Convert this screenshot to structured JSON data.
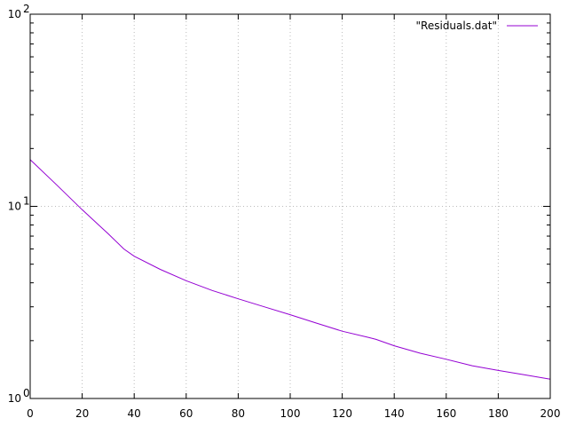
{
  "chart_data": {
    "type": "line",
    "title": "",
    "xlabel": "",
    "ylabel": "",
    "xlim": [
      0,
      200
    ],
    "ylim": [
      1,
      100
    ],
    "yscale": "log",
    "grid": true,
    "legend": "top-right",
    "x_ticks": [
      "0",
      "20",
      "40",
      "60",
      "80",
      "100",
      "120",
      "140",
      "160",
      "180",
      "200"
    ],
    "y_ticks": [
      {
        "base": "10",
        "exp": "0"
      },
      {
        "base": "10",
        "exp": "1"
      },
      {
        "base": "10",
        "exp": "2"
      }
    ],
    "series": [
      {
        "name": "\"Residuals.dat\"",
        "color": "#9400d3",
        "x": [
          0,
          10,
          20,
          30,
          36,
          40,
          50,
          60,
          70,
          80,
          90,
          100,
          110,
          120,
          130,
          133,
          140,
          150,
          160,
          170,
          180,
          190,
          200
        ],
        "y": [
          17.5,
          13.0,
          9.6,
          7.2,
          6.0,
          5.5,
          4.7,
          4.1,
          3.65,
          3.3,
          3.0,
          2.73,
          2.47,
          2.24,
          2.08,
          2.03,
          1.88,
          1.72,
          1.6,
          1.48,
          1.4,
          1.33,
          1.26
        ]
      }
    ]
  }
}
